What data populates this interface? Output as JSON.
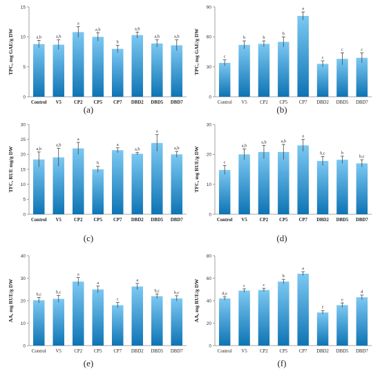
{
  "figure": {
    "bar_gradient_top": "#7cc8f2",
    "bar_gradient_bottom": "#0e74b4",
    "axis_color": "#888888",
    "error_bar_color": "#444444"
  },
  "chart_data": [
    {
      "type": "bar",
      "panel_label": "(a)",
      "ylabel": "TPC, mg GAE/g DW",
      "ylim": [
        0,
        15
      ],
      "yticks": [
        0,
        5,
        10,
        15
      ],
      "bold_categories": true,
      "categories": [
        "Control",
        "V5",
        "CP2",
        "CP5",
        "CP7",
        "DBD2",
        "DBD5",
        "DBD7"
      ],
      "values": [
        8.8,
        8.7,
        10.8,
        10.0,
        8.0,
        10.3,
        8.9,
        8.6
      ],
      "errors": [
        0.6,
        0.8,
        0.9,
        0.7,
        0.6,
        0.5,
        0.6,
        0.9
      ],
      "letters": [
        "a,b",
        "a,b",
        "a",
        "a,b",
        "b",
        "a,b",
        "a,b",
        "a,b"
      ]
    },
    {
      "type": "bar",
      "panel_label": "(b)",
      "ylabel": "TPC, mg GAE/g DW",
      "ylim": [
        0,
        90
      ],
      "yticks": [
        0,
        30,
        60,
        90
      ],
      "bold_categories": false,
      "categories": [
        "Control",
        "V5",
        "CP2",
        "CP5",
        "CP7",
        "DBD2",
        "DBD5",
        "DBD7"
      ],
      "values": [
        34,
        52,
        53,
        55,
        81,
        33,
        38,
        39
      ],
      "errors": [
        3,
        4,
        3,
        5,
        4,
        3,
        6,
        5
      ],
      "letters": [
        "c",
        "b",
        "b",
        "b",
        "a",
        "c",
        "c",
        "c"
      ]
    },
    {
      "type": "bar",
      "panel_label": "(c)",
      "ylabel": "TFC, RUE mg/g DW",
      "ylim": [
        0,
        30
      ],
      "yticks": [
        0,
        5,
        10,
        15,
        20,
        25,
        30
      ],
      "bold_categories": true,
      "categories": [
        "Control",
        "V5",
        "CP2",
        "CP5",
        "CP7",
        "DBD2",
        "DBD5",
        "DBD7"
      ],
      "values": [
        18.3,
        19.0,
        22.0,
        15.0,
        21.4,
        20.2,
        23.8,
        20.0
      ],
      "errors": [
        2.5,
        3.0,
        2.0,
        1.0,
        0.8,
        0.4,
        2.8,
        1.0
      ],
      "letters": [
        "a,b",
        "a,b",
        "a",
        "b",
        "a",
        "a,b",
        "a",
        "a,b"
      ]
    },
    {
      "type": "bar",
      "panel_label": "(d)",
      "ylabel": "TFC, mg RUE/g DW",
      "ylim": [
        0,
        30
      ],
      "yticks": [
        0,
        10,
        20,
        30
      ],
      "bold_categories": true,
      "categories": [
        "Control",
        "V5",
        "CP2",
        "CP5",
        "CP7",
        "DBD2",
        "DBD5",
        "DBD7"
      ],
      "values": [
        14.8,
        20.0,
        20.8,
        20.8,
        23.0,
        17.8,
        18.2,
        17.0
      ],
      "errors": [
        1.5,
        1.8,
        2.2,
        2.5,
        2.0,
        1.5,
        1.2,
        1.2
      ],
      "letters": [
        "c",
        "a,b",
        "a,b",
        "a,b",
        "a",
        "b,c",
        "b",
        "b,c"
      ]
    },
    {
      "type": "bar",
      "panel_label": "(e)",
      "ylabel": "AA, mg RUE/g DW",
      "ylim": [
        0,
        40
      ],
      "yticks": [
        0,
        10,
        20,
        30,
        40
      ],
      "bold_categories": false,
      "categories": [
        "Control",
        "V5",
        "CP2",
        "CP5",
        "CP7",
        "DBD2",
        "DBD5",
        "DBD7"
      ],
      "values": [
        20.2,
        20.8,
        28.5,
        25.0,
        18.0,
        26.3,
        22.0,
        21.0
      ],
      "errors": [
        1.2,
        1.5,
        1.8,
        1.5,
        1.2,
        1.4,
        1.0,
        1.2
      ],
      "letters": [
        "b,c",
        "b,c",
        "a",
        "a",
        "c",
        "a",
        "b,c",
        "b,c"
      ]
    },
    {
      "type": "bar",
      "panel_label": "(f)",
      "ylabel": "AA, mg RUE/g DW",
      "ylim": [
        0,
        80
      ],
      "yticks": [
        0,
        20,
        40,
        60,
        80
      ],
      "bold_categories": false,
      "categories": [
        "Control",
        "V5",
        "CP2",
        "CP5",
        "CP7",
        "DBD2",
        "DBD5",
        "DBD7"
      ],
      "values": [
        42,
        49,
        49.5,
        57,
        64,
        29.5,
        36,
        43
      ],
      "errors": [
        1.5,
        1.5,
        1.5,
        2.0,
        1.8,
        1.5,
        2.0,
        2.0
      ],
      "letters": [
        "d,e",
        "c",
        "c",
        "b",
        "a",
        "f",
        "e",
        "d"
      ]
    }
  ]
}
